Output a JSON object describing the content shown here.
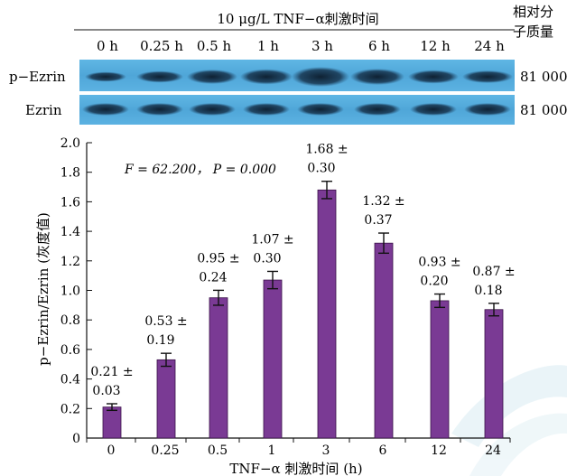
{
  "blot": {
    "treatment_label": "10 μg/L  TNF−α刺激时间",
    "mw_header": [
      "相对分",
      "子质量"
    ],
    "lanes": [
      "0 h",
      "0.25 h",
      "0.5 h",
      "1 h",
      "3 h",
      "6 h",
      "12 h",
      "24 h"
    ],
    "rows": [
      {
        "label": "p−Ezrin",
        "mw": "81 000"
      },
      {
        "label": "Ezrin",
        "mw": "81 000"
      }
    ]
  },
  "chart_data": {
    "type": "bar",
    "categories": [
      "0",
      "0.25",
      "0.5",
      "1",
      "3",
      "6",
      "12",
      "24"
    ],
    "values": [
      0.21,
      0.53,
      0.95,
      1.07,
      1.68,
      1.32,
      0.93,
      0.87
    ],
    "errors": [
      0.03,
      0.19,
      0.24,
      0.3,
      0.3,
      0.37,
      0.2,
      0.18
    ],
    "data_labels": [
      [
        "0.21 ±",
        "0.03"
      ],
      [
        "0.53 ±",
        "0.19"
      ],
      [
        "0.95 ±",
        "0.24"
      ],
      [
        "1.07 ±",
        "0.30"
      ],
      [
        "1.68 ±",
        "0.30"
      ],
      [
        "1.32 ±",
        "0.37"
      ],
      [
        "0.93 ±",
        "0.20"
      ],
      [
        "0.87 ±",
        "0.18"
      ]
    ],
    "annotation": "F = 62.200， P = 0.000",
    "xlabel": "TNF−α 刺激时间 (h)",
    "ylabel": "p−Ezrin/Ezrin (灰度值)",
    "ylim": [
      0,
      2.0
    ],
    "yticks": [
      "0",
      "0.2",
      "0.4",
      "0.6",
      "0.8",
      "1.0",
      "1.2",
      "1.4",
      "1.6",
      "1.8",
      "2.0"
    ],
    "bar_color": "#7a3a94",
    "grid": false
  }
}
